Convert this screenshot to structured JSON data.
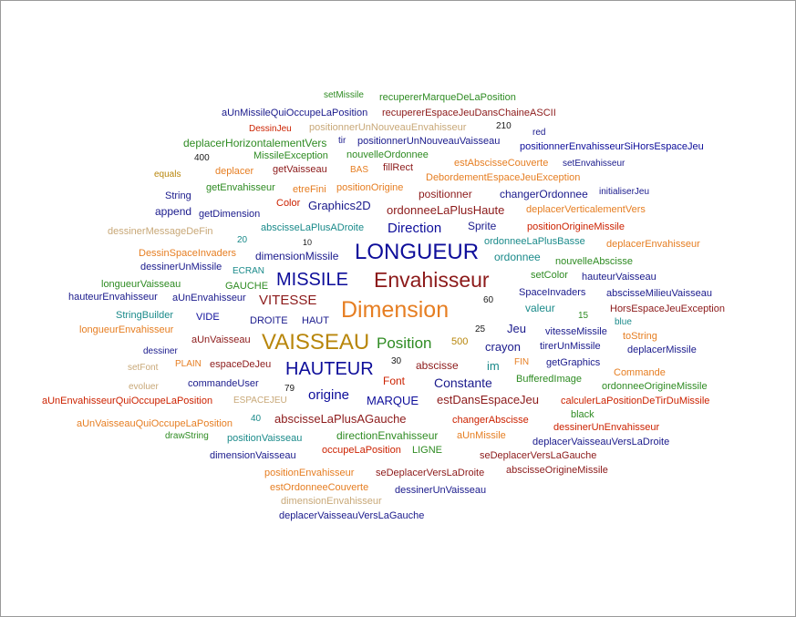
{
  "palette": {
    "dark_blue": "#1a1a8c",
    "navy": "#0d0d9a",
    "dark_red": "#8c1a1a",
    "red": "#cc2200",
    "orange": "#e67e22",
    "gold": "#b8860b",
    "tan": "#c8a878",
    "green": "#2e8b22",
    "teal": "#1a8a8a"
  },
  "words": [
    "setMissile",
    "recupererMarqueDeLaPosition",
    "aUnMissileQuiOccupeLaPosition",
    "recupererEspaceJeuDansChaineASCII",
    "DessinJeu",
    "positionnerUnNouveauEnvahisseur",
    "210",
    "red",
    "tir",
    "positionnerUnNouveauVaisseau",
    "deplacerHorizontalementVers",
    "positionnerEnvahisseurSiHorsEspaceJeu",
    "400",
    "MissileException",
    "nouvelleOrdonnee",
    "estAbscisseCouverte",
    "setEnvahisseur",
    "equals",
    "deplacer",
    "getVaisseau",
    "BAS",
    "fillRect",
    "DebordementEspaceJeuException",
    "getEnvahisseur",
    "etreFini",
    "positionOrigine",
    "positionner",
    "changerOrdonnee",
    "initialiserJeu",
    "String",
    "Color",
    "Graphics2D",
    "append",
    "getDimension",
    "ordonneeLaPlusHaute",
    "deplacerVerticalementVers",
    "abscisseLaPlusADroite",
    "Direction",
    "Sprite",
    "positionOrigineMissile",
    "dessinerMessageDeFin",
    "20",
    "10",
    "ordonneeLaPlusBasse",
    "deplacerEnvahisseur",
    "DessinSpaceInvaders",
    "dimensionMissile",
    "LONGUEUR",
    "ordonnee",
    "dessinerUnMissile",
    "ECRAN",
    "nouvelleAbscisse",
    "longueurVaisseau",
    "setColor",
    "hauteurVaisseau",
    "MISSILE",
    "Envahisseur",
    "GAUCHE",
    "SpaceInvaders",
    "abscisseMilieuVaisseau",
    "hauteurEnvahisseur",
    "aUnEnvahisseur",
    "VITESSE",
    "60",
    "valeur",
    "HorsEspaceJeuException",
    "StringBuilder",
    "Dimension",
    "15",
    "VIDE",
    "DROITE",
    "HAUT",
    "blue",
    "longueurEnvahisseur",
    "25",
    "Jeu",
    "vitesseMissile",
    "aUnVaisseau",
    "VAISSEAU",
    "Position",
    "500",
    "crayon",
    "tirerUnMissile",
    "toString",
    "dessiner",
    "deplacerMissile",
    "30",
    "abscisse",
    "FIN",
    "getGraphics",
    "setFont",
    "PLAIN",
    "espaceDeJeu",
    "HAUTEUR",
    "im",
    "Commande",
    "evoluer",
    "commandeUser",
    "Font",
    "Constante",
    "BufferedImage",
    "79",
    "origine",
    "ordonneeOrigineMissile",
    "aUnEnvahisseurQuiOccupeLaPosition",
    "ESPACEJEU",
    "MARQUE",
    "estDansEspaceJeu",
    "calculerLaPositionDeTirDuMissile",
    "black",
    "40",
    "abscisseLaPlusAGauche",
    "changerAbscisse",
    "aUnVaisseauQuiOccupeLaPosition",
    "dessinerUnEnvahisseur",
    "drawString",
    "positionVaisseau",
    "directionEnvahisseur",
    "aUnMissile",
    "deplacerVaisseauVersLaDroite",
    "occupeLaPosition",
    "LIGNE",
    "dimensionVaisseau",
    "seDeplacerVersLaGauche",
    "abscisseOrigineMissile",
    "positionEnvahisseur",
    "seDeplacerVersLaDroite",
    "estOrdonneeCouverte",
    "dessinerUnVaisseau",
    "dimensionEnvahisseur",
    "deplacerVaisseauVersLaGauche"
  ]
}
